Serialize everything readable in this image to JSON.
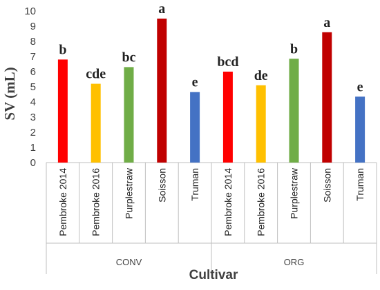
{
  "chart_data": {
    "type": "bar",
    "ylabel": "SV (mL)",
    "xlabel": "Cultivar",
    "ylim": [
      0,
      10
    ],
    "yticks": [
      0,
      1,
      2,
      3,
      4,
      5,
      6,
      7,
      8,
      9,
      10
    ],
    "grid": false,
    "legend": "none",
    "groups": [
      {
        "name": "CONV",
        "categories": [
          "Pembroke 2014",
          "Pembroke 2016",
          "Purplestraw",
          "Soisson",
          "Truman"
        ],
        "values": [
          6.8,
          5.2,
          6.3,
          9.5,
          4.65
        ],
        "letters": [
          "b",
          "cde",
          "bc",
          "a",
          "e"
        ]
      },
      {
        "name": "ORG",
        "categories": [
          "Pembroke 2014",
          "Pembroke 2016",
          "Purplestraw",
          "Soisson",
          "Truman"
        ],
        "values": [
          6.0,
          5.1,
          6.85,
          8.6,
          4.35
        ],
        "letters": [
          "bcd",
          "de",
          "b",
          "a",
          "e"
        ]
      }
    ],
    "colors": {
      "Pembroke 2014": "#ff0000",
      "Pembroke 2016": "#ffc000",
      "Purplestraw": "#70ad47",
      "Soisson": "#c00000",
      "Truman": "#4472c4"
    }
  }
}
